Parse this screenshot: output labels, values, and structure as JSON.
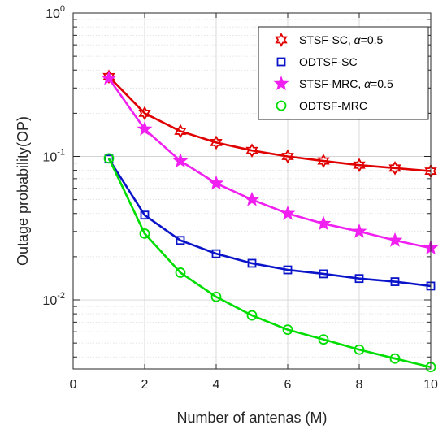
{
  "chart_data": {
    "type": "line",
    "xlabel": "Number of antenas (M)",
    "ylabel": "Outage probability(OP)",
    "xlim": [
      0,
      10
    ],
    "ylim": [
      0.0033,
      1
    ],
    "yscale": "log",
    "grid": true,
    "legend_position": "top-right",
    "x_ticks": [
      "0",
      "2",
      "4",
      "6",
      "8",
      "10"
    ],
    "x_tick_values": [
      0,
      2,
      4,
      6,
      8,
      10
    ],
    "y_ticks": [
      {
        "value": 1,
        "base": "10",
        "exp": "0"
      },
      {
        "value": 0.1,
        "base": "10",
        "exp": "-1"
      },
      {
        "value": 0.01,
        "base": "10",
        "exp": "-2"
      }
    ],
    "x": [
      1,
      2,
      3,
      4,
      5,
      6,
      7,
      8,
      9,
      10
    ],
    "series": [
      {
        "name": "STSF-SC, α=0.5",
        "legend_prefix": "STSF-SC, ",
        "legend_greek": "α",
        "legend_suffix": "=0.5",
        "color": "#e00000",
        "marker": "hexagram",
        "values": [
          0.36,
          0.2,
          0.15,
          0.125,
          0.11,
          0.1,
          0.093,
          0.087,
          0.083,
          0.079
        ]
      },
      {
        "name": "ODTSF-SC",
        "legend_prefix": "ODTSF-SC",
        "color": "#0a14c8",
        "marker": "square",
        "values": [
          0.096,
          0.039,
          0.026,
          0.021,
          0.018,
          0.0162,
          0.0152,
          0.0141,
          0.0134,
          0.0125
        ]
      },
      {
        "name": "STSF-MRC, α=0.5",
        "legend_prefix": "STSF-MRC, ",
        "legend_greek": "α",
        "legend_suffix": "=0.5",
        "color": "#f020f0",
        "marker": "pentagram",
        "values": [
          0.35,
          0.155,
          0.093,
          0.065,
          0.05,
          0.04,
          0.034,
          0.03,
          0.026,
          0.023
        ]
      },
      {
        "name": "ODTSF-MRC",
        "legend_prefix": "ODTSF-MRC",
        "color": "#00dd00",
        "marker": "circle",
        "values": [
          0.097,
          0.029,
          0.0155,
          0.0105,
          0.0078,
          0.0062,
          0.0053,
          0.0045,
          0.0039,
          0.0034
        ]
      }
    ]
  }
}
